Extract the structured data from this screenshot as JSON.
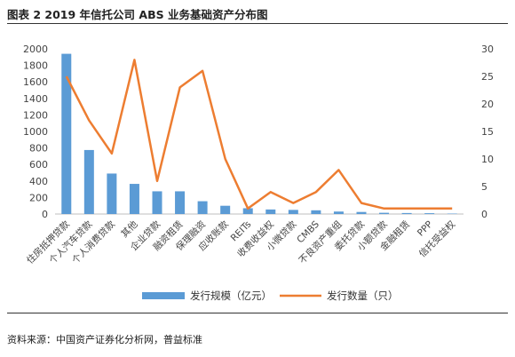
{
  "figure": {
    "title": "图表 2 2019 年信托公司 ABS 业务基础资产分布图",
    "source": "资料来源：中国资产证券化分析网，普益标准"
  },
  "chart_data": {
    "type": "bar+line",
    "categories": [
      "住房抵押贷款",
      "个人汽车贷款",
      "个人消费贷款",
      "其他",
      "企业贷款",
      "融资租赁",
      "保理融资",
      "应收账款",
      "REITs",
      "收费收益权",
      "小微贷款",
      "CMBS",
      "不良资产重组",
      "委托贷款",
      "小额贷款",
      "金融租赁",
      "PPP",
      "信托受益权"
    ],
    "series": [
      {
        "name": "发行规模（亿元）",
        "type": "bar",
        "axis": "left",
        "color": "#5b9bd5",
        "values": [
          1940,
          775,
          490,
          365,
          275,
          275,
          155,
          100,
          70,
          55,
          50,
          45,
          30,
          25,
          15,
          12,
          10,
          5
        ]
      },
      {
        "name": "发行数量（只）",
        "type": "line",
        "axis": "right",
        "color": "#ed7d31",
        "values": [
          25,
          17,
          11,
          28,
          6,
          23,
          26,
          10,
          1,
          4,
          2,
          4,
          8,
          2,
          1,
          1,
          1,
          1
        ]
      }
    ],
    "y_left": {
      "min": 0,
      "max": 2000,
      "ticks": [
        0,
        200,
        400,
        600,
        800,
        1000,
        1200,
        1400,
        1600,
        1800,
        2000
      ]
    },
    "y_right": {
      "min": 0,
      "max": 30,
      "ticks": [
        0,
        5,
        10,
        15,
        20,
        25,
        30
      ]
    },
    "grid": false,
    "legend_position": "bottom"
  }
}
